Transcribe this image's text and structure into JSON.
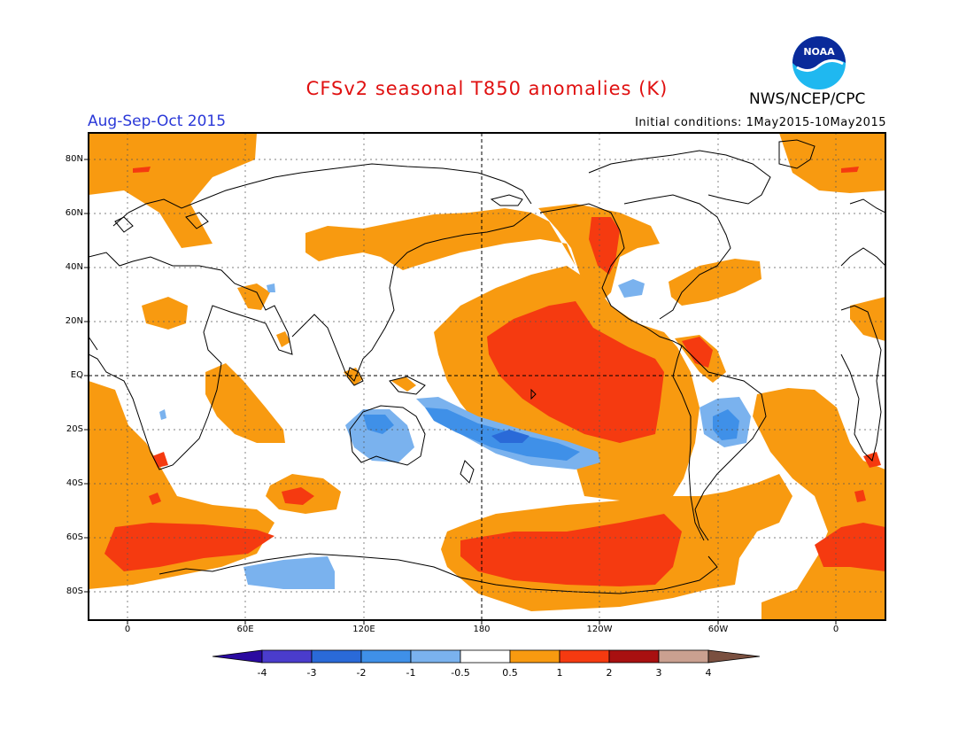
{
  "title": "CFSv2 seasonal T850 anomalies (K)",
  "organization": "NWS/NCEP/CPC",
  "logo_text": "NOAA",
  "period": "Aug-Sep-Oct 2015",
  "initial_conditions": "Initial conditions: 1May2015-10May2015",
  "lat_labels": [
    "80N",
    "60N",
    "40N",
    "20N",
    "EQ",
    "20S",
    "40S",
    "60S",
    "80S"
  ],
  "lon_labels": [
    "0",
    "60E",
    "120E",
    "180",
    "120W",
    "60W",
    "0"
  ],
  "colorbar": {
    "labels": [
      "-4",
      "-3",
      "-2",
      "-1",
      "-0.5",
      "0.5",
      "1",
      "2",
      "3",
      "4"
    ],
    "colors": [
      "#2a0aa0",
      "#4a3ccc",
      "#2a6ad8",
      "#3f90e8",
      "#7ab2ee",
      "#ffffff",
      "#f89a10",
      "#f53a10",
      "#a81010",
      "#caa090",
      "#7a5040"
    ]
  },
  "map_colors": {
    "warm_0_5": "#f89a10",
    "warm_1": "#f53a10",
    "warm_2": "#a81010",
    "cool_0_5": "#7ab2ee",
    "cool_1": "#3f90e8",
    "cool_2": "#2a6ad8"
  }
}
